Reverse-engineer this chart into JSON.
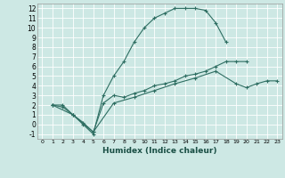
{
  "xlabel": "Humidex (Indice chaleur)",
  "bg_color": "#cde8e4",
  "grid_color": "#ffffff",
  "line_color": "#2e6e62",
  "xlim": [
    -0.5,
    23.5
  ],
  "ylim": [
    -1.5,
    12.5
  ],
  "xticks": [
    0,
    1,
    2,
    3,
    4,
    5,
    6,
    7,
    8,
    9,
    10,
    11,
    12,
    13,
    14,
    15,
    16,
    17,
    18,
    19,
    20,
    21,
    22,
    23
  ],
  "yticks": [
    -1,
    0,
    1,
    2,
    3,
    4,
    5,
    6,
    7,
    8,
    9,
    10,
    11,
    12
  ],
  "line1_x": [
    1,
    2,
    3,
    4,
    5,
    6,
    7,
    8,
    9,
    10,
    11,
    12,
    13,
    14,
    15,
    16,
    17,
    18
  ],
  "line1_y": [
    2,
    2,
    1,
    0,
    -1,
    3,
    5,
    6.5,
    8.5,
    10,
    11,
    11.5,
    12,
    12,
    12,
    11.8,
    10.5,
    8.5
  ],
  "line2_x": [
    1,
    2,
    3,
    4,
    5,
    6,
    7,
    8,
    9,
    10,
    11,
    12,
    13,
    14,
    15,
    16,
    17,
    18,
    19,
    20
  ],
  "line2_y": [
    2,
    1.8,
    1,
    0.2,
    -0.8,
    2.2,
    3,
    2.8,
    3.2,
    3.5,
    4,
    4.2,
    4.5,
    5,
    5.2,
    5.5,
    6,
    6.5,
    6.5,
    6.5
  ],
  "line3_x": [
    1,
    3,
    5,
    7,
    9,
    11,
    13,
    15,
    17,
    19,
    20,
    21,
    22,
    23
  ],
  "line3_y": [
    2,
    1,
    -0.8,
    2.2,
    2.8,
    3.5,
    4.2,
    4.8,
    5.5,
    4.2,
    3.8,
    4.2,
    4.5,
    4.5
  ]
}
